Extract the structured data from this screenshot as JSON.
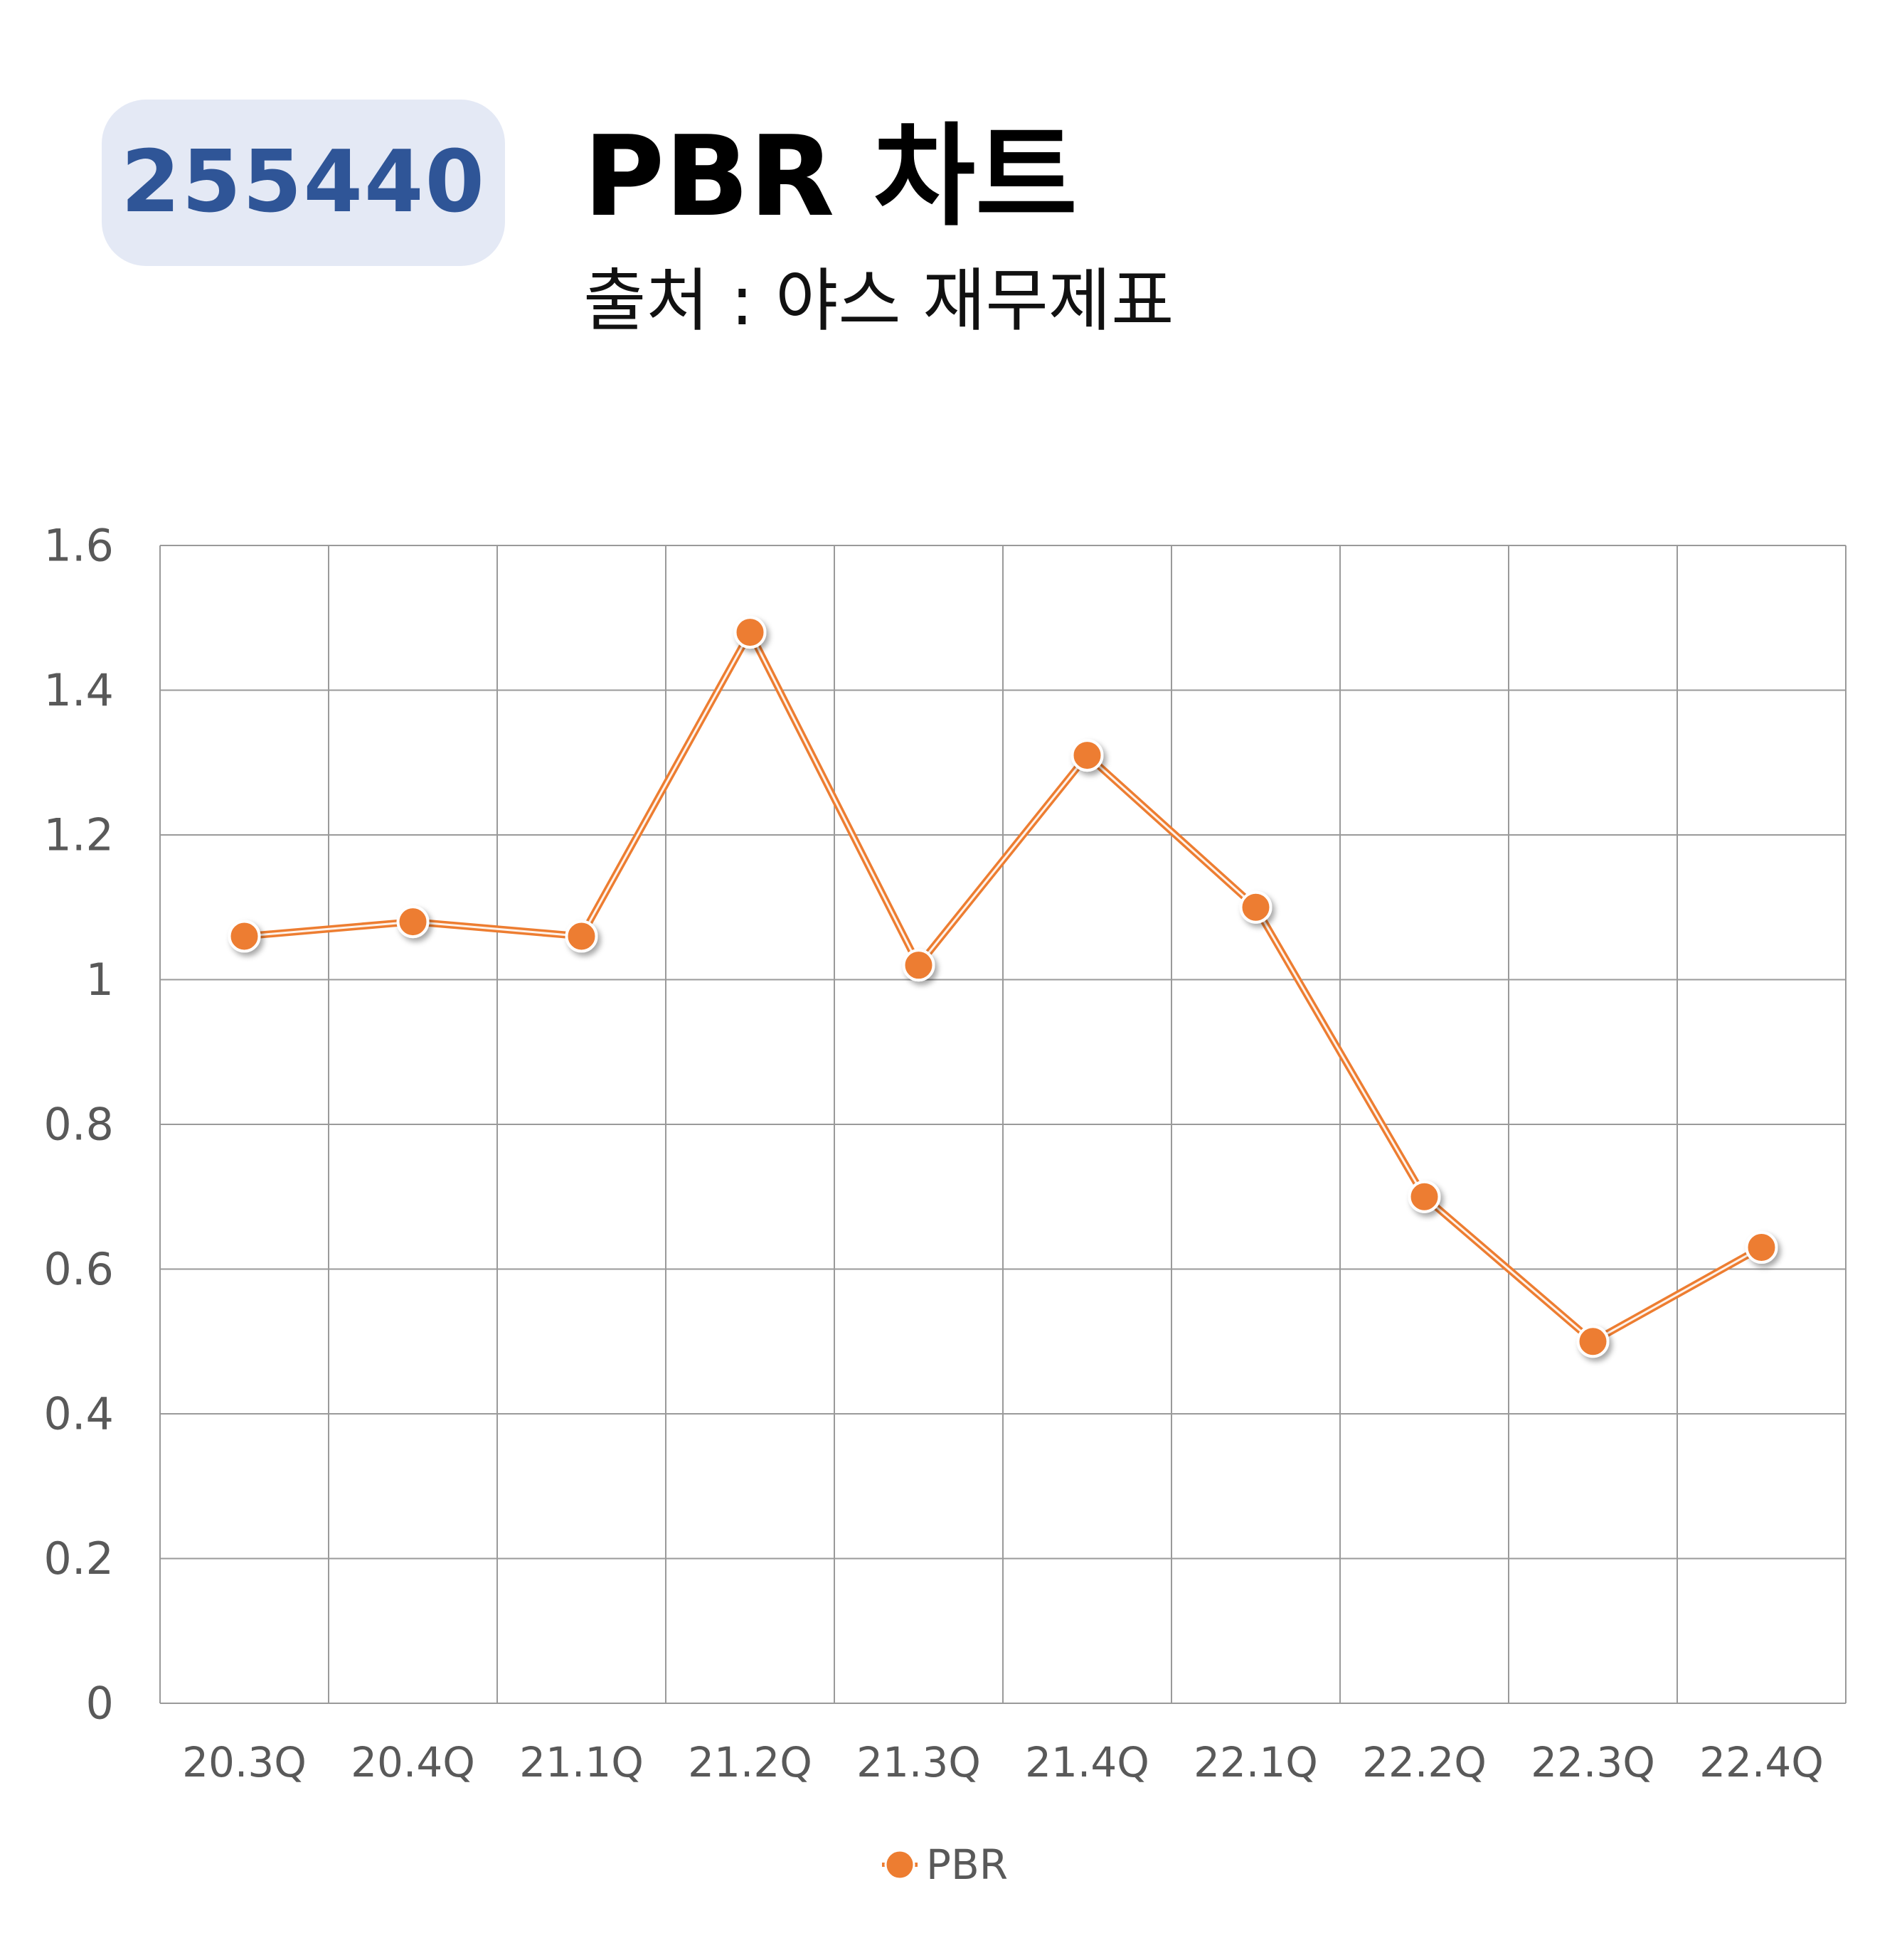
{
  "badge": {
    "code": "255440"
  },
  "header": {
    "title": "PBR 차트",
    "subtitle": "출처 : 야스 재무제표"
  },
  "colors": {
    "badge_bg": "#e4e9f5",
    "badge_text": "#2f5597",
    "series_line": "#ed7d31",
    "marker_fill": "#ed7d31",
    "marker_stroke": "#ffffff",
    "grid": "#9a9a9a",
    "tick_text": "#595959"
  },
  "chart_data": {
    "type": "line",
    "title": "",
    "xlabel": "",
    "ylabel": "",
    "categories": [
      "20.3Q",
      "20.4Q",
      "21.1Q",
      "21.2Q",
      "21.3Q",
      "21.4Q",
      "22.1Q",
      "22.2Q",
      "22.3Q",
      "22.4Q"
    ],
    "series": [
      {
        "name": "PBR",
        "values": [
          1.06,
          1.08,
          1.06,
          1.48,
          1.02,
          1.31,
          1.1,
          0.7,
          0.5,
          0.63
        ]
      }
    ],
    "ylim": [
      0,
      1.6
    ],
    "yticks": [
      0,
      0.2,
      0.4,
      0.6,
      0.8,
      1,
      1.2,
      1.4,
      1.6
    ],
    "ytick_labels": [
      "0",
      "0.2",
      "0.4",
      "0.6",
      "0.8",
      "1",
      "1.2",
      "1.4",
      "1.6"
    ],
    "grid": true,
    "legend": {
      "position": "bottom",
      "entries": [
        "PBR"
      ]
    }
  }
}
